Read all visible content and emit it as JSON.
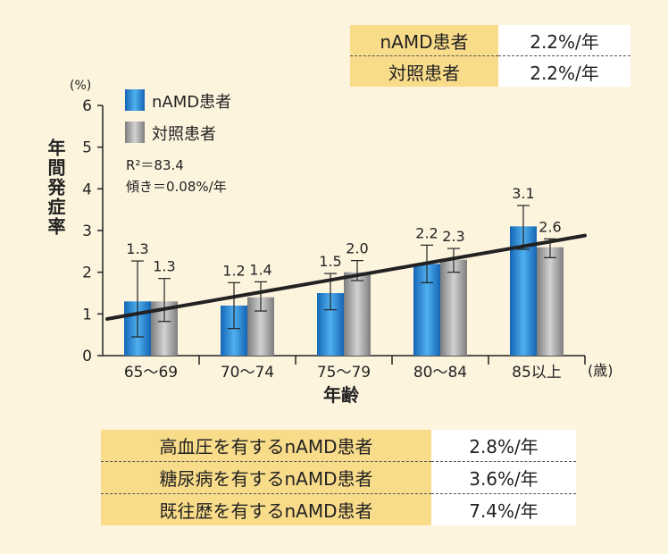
{
  "summary_top": {
    "rows": [
      {
        "label": "nAMD患者",
        "value": "2.2%/年"
      },
      {
        "label": "対照患者",
        "value": "2.2%/年"
      }
    ]
  },
  "summary_bottom": {
    "rows": [
      {
        "label": "高血圧を有するnAMD患者",
        "value": "2.8%/年"
      },
      {
        "label": "糖尿病を有するnAMD患者",
        "value": "3.6%/年"
      },
      {
        "label": "既往歴を有するnAMD患者",
        "value": "7.4%/年"
      }
    ]
  },
  "chart_data": {
    "type": "bar",
    "title": "",
    "ylabel": "年間発症率",
    "yunit": "(%)",
    "xlabel": "年齢",
    "xunit": "(歳)",
    "ylim": [
      0,
      6
    ],
    "yticks": [
      0,
      1,
      2,
      3,
      4,
      5,
      6
    ],
    "categories": [
      "65～69",
      "70～74",
      "75～79",
      "80～84",
      "85以上"
    ],
    "series": [
      {
        "name": "nAMD患者",
        "values": [
          1.3,
          1.2,
          1.5,
          2.2,
          3.1
        ],
        "labels": [
          "1.3",
          "1.2",
          "1.5",
          "2.2",
          "3.1"
        ],
        "error_low": [
          0.45,
          0.65,
          1.1,
          1.75,
          2.55
        ],
        "error_high": [
          2.27,
          1.75,
          1.97,
          2.65,
          3.6
        ],
        "color": "#2e8fd6"
      },
      {
        "name": "対照患者",
        "values": [
          1.3,
          1.4,
          2.0,
          2.3,
          2.6
        ],
        "labels": [
          "1.3",
          "1.4",
          "2.0",
          "2.3",
          "2.6"
        ],
        "error_low": [
          0.82,
          1.07,
          1.8,
          2.0,
          2.35
        ],
        "error_high": [
          1.85,
          1.77,
          2.28,
          2.57,
          2.8
        ],
        "color": "#9a9a9a"
      }
    ],
    "trendline": {
      "start": 0.88,
      "end": 2.88,
      "color": "#222222"
    },
    "annotations": {
      "r2": "R²＝83.4",
      "slope": "傾き＝0.08%/年"
    },
    "grid": false,
    "legend": "top-left"
  }
}
